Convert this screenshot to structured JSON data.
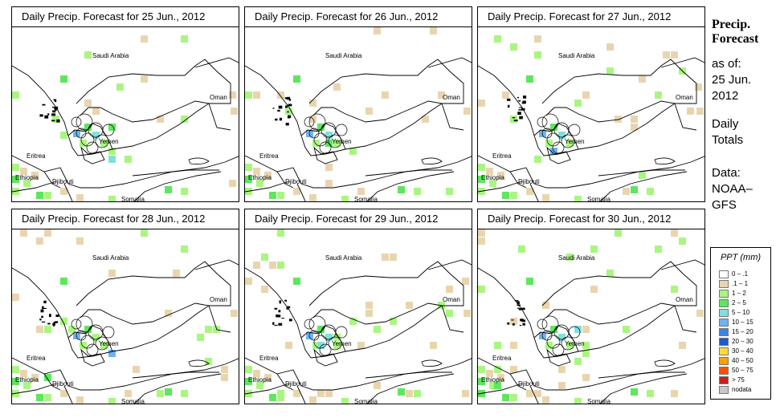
{
  "panels": [
    {
      "title": "Daily Precip. Forecast for  25 Jun., 2012"
    },
    {
      "title": "Daily Precip. Forecast for  26 Jun., 2012"
    },
    {
      "title": "Daily Precip. Forecast for  27 Jun., 2012"
    },
    {
      "title": "Daily Precip. Forecast for  28 Jun., 2012"
    },
    {
      "title": "Daily Precip. Forecast for  29 Jun., 2012"
    },
    {
      "title": "Daily Precip. Forecast for  30 Jun., 2012"
    }
  ],
  "map_labels": {
    "saudi_arabia": "Saudi Arabia",
    "oman": "Oman",
    "yemen": "Yemen",
    "eritrea": "Eritrea",
    "ethiopia": "Ethiopia",
    "djibouti": "Djibouti",
    "somalia": "Somalia"
  },
  "side": {
    "title_line1": "Precip.",
    "title_line2": "Forecast",
    "asof_label": "as of:",
    "date_line1": "25 Jun.",
    "date_line2": "2012",
    "totals_line1": "Daily",
    "totals_line2": "Totals",
    "data_line1": "Data:",
    "data_line2": "NOAA–",
    "data_line3": "GFS"
  },
  "legend": {
    "title": "PPT (mm)",
    "items": [
      {
        "label": "0 – .1",
        "color": "#ffffff"
      },
      {
        "label": ".1 – 1",
        "color": "#e8d5b0"
      },
      {
        "label": "1 – 2",
        "color": "#aaf582"
      },
      {
        "label": "2 – 5",
        "color": "#5ee65e"
      },
      {
        "label": "5 – 10",
        "color": "#82dfdc"
      },
      {
        "label": "10 – 15",
        "color": "#6eb4f0"
      },
      {
        "label": "15 – 20",
        "color": "#3c82eb"
      },
      {
        "label": "20 – 30",
        "color": "#1e5ad2"
      },
      {
        "label": "30 – 40",
        "color": "#ffdc3c"
      },
      {
        "label": "40 – 50",
        "color": "#ffa000"
      },
      {
        "label": "50 – 75",
        "color": "#ff5000"
      },
      {
        "label": "> 75",
        "color": "#c81e1e"
      },
      {
        "label": "nodata",
        "color": "#c8c8c8"
      }
    ]
  }
}
